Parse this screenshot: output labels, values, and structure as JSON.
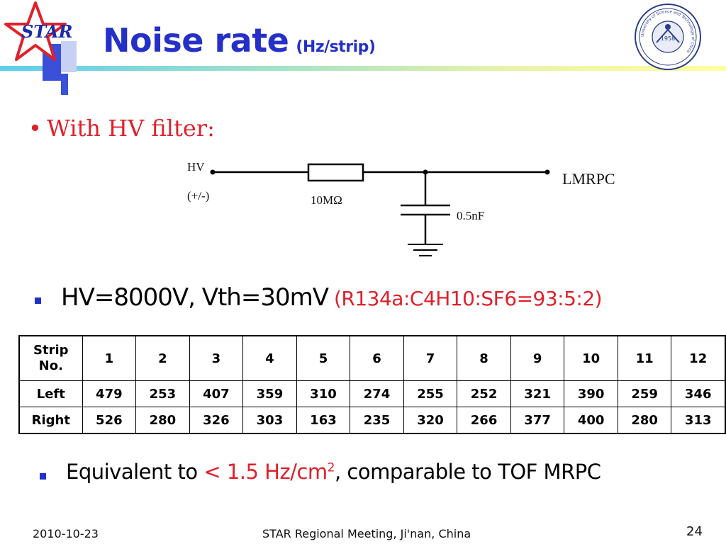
{
  "header": {
    "logo_text": "STAR",
    "title": "Noise rate",
    "title_suffix": "(Hz/strip)",
    "seal_year": "1958",
    "seal_ring_text": "University of Science and Technology of China"
  },
  "bullet_filter": {
    "dot": "•",
    "text": "With HV filter:"
  },
  "circuit": {
    "hv_label": "HV",
    "polarity_label": "(+/-)",
    "resistor_label": "10MΩ",
    "capacitor_label": "0.5nF",
    "load_label": "LMRPC"
  },
  "conditions": {
    "main": "HV=8000V, Vth=30mV",
    "gas_mix": "(R134a:C4H10:SF6=93:5:2)"
  },
  "table": {
    "header_label_line1": "Strip",
    "header_label_line2": "No.",
    "strips": [
      "1",
      "2",
      "3",
      "4",
      "5",
      "6",
      "7",
      "8",
      "9",
      "10",
      "11",
      "12"
    ],
    "rows": [
      {
        "label": "Left",
        "values": [
          "479",
          "253",
          "407",
          "359",
          "310",
          "274",
          "255",
          "252",
          "321",
          "390",
          "259",
          "346"
        ]
      },
      {
        "label": "Right",
        "values": [
          "526",
          "280",
          "326",
          "303",
          "163",
          "235",
          "320",
          "266",
          "377",
          "400",
          "280",
          "313"
        ]
      }
    ]
  },
  "summary": {
    "prefix": "Equivalent to ",
    "highlight": "< 1.5 Hz/cm",
    "highlight_sup": "2",
    "suffix": ", comparable to TOF MRPC"
  },
  "footer": {
    "date": "2010-10-23",
    "event": "STAR Regional Meeting, Ji'nan, China",
    "page": "24"
  },
  "colors": {
    "title_blue": "#2430c8",
    "accent_red": "#e0202a"
  }
}
